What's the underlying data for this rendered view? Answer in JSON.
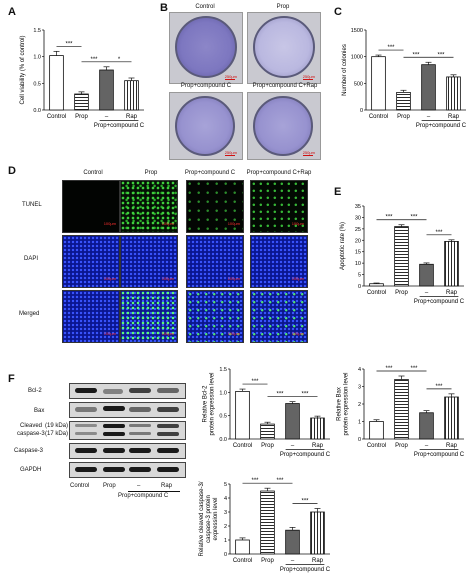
{
  "panels": {
    "A": "A",
    "B": "B",
    "C": "C",
    "D": "D",
    "E": "E",
    "F": "F"
  },
  "common": {
    "group_labels": [
      "Control",
      "Prop",
      "–",
      "Rap"
    ],
    "compound_label": "Prop+compound C",
    "colors": {
      "bar_fill": "#ffffff",
      "bar_stroke": "#111111",
      "sig": "#111111"
    }
  },
  "colony_images": {
    "labels": [
      "Control",
      "Prop",
      "Prop+compound C",
      "Prop+compound C+Rap"
    ],
    "scale": "250μm"
  },
  "tunel": {
    "columns": [
      "Control",
      "Prop",
      "Prop+compound C",
      "Prop+compound C+Rap"
    ],
    "rows": [
      "TUNEL",
      "DAPI",
      "Merged"
    ],
    "scale": "100μm"
  },
  "western": {
    "rows": [
      "Bcl-2",
      "Bax",
      "Cleaved",
      "caspase-3",
      "(19 kDa)",
      "(17 kDa)",
      "Caspase-3",
      "GAPDH"
    ],
    "lanes": [
      "Control",
      "Prop",
      "–",
      "Rap"
    ],
    "compound_label": "Prop+compound C"
  },
  "chart_data": [
    {
      "id": "A",
      "type": "bar",
      "categories": [
        "Control",
        "Prop",
        "–",
        "Rap"
      ],
      "values": [
        1.02,
        0.3,
        0.75,
        0.55
      ],
      "errors": [
        0.08,
        0.04,
        0.06,
        0.05
      ],
      "ylabel": "Cell viability (% of control)",
      "ylim": [
        0,
        1.5
      ],
      "yticks": [
        "0.0",
        "0.5",
        "1.0",
        "1.5"
      ],
      "sig": [
        "***",
        "***",
        "*"
      ]
    },
    {
      "id": "C",
      "type": "bar",
      "categories": [
        "Control",
        "Prop",
        "–",
        "Rap"
      ],
      "values": [
        1000,
        330,
        850,
        620
      ],
      "errors": [
        30,
        40,
        45,
        40
      ],
      "ylabel": "Number of colonies",
      "ylim": [
        0,
        1500
      ],
      "yticks": [
        "0",
        "500",
        "1000",
        "1500"
      ],
      "sig": [
        "***",
        "***",
        "***"
      ]
    },
    {
      "id": "E",
      "type": "bar",
      "categories": [
        "Control",
        "Prop",
        "–",
        "Rap"
      ],
      "values": [
        1,
        26,
        9.5,
        19.5
      ],
      "errors": [
        0.3,
        0.8,
        0.6,
        0.7
      ],
      "ylabel": "Apoptotic rate (%)",
      "ylim": [
        0,
        35
      ],
      "yticks": [
        "0",
        "5",
        "10",
        "15",
        "20",
        "25",
        "30",
        "35"
      ],
      "sig": [
        "***",
        "***",
        "***"
      ]
    },
    {
      "id": "F1",
      "type": "bar",
      "categories": [
        "Control",
        "Prop",
        "–",
        "Rap"
      ],
      "values": [
        1.02,
        0.32,
        0.76,
        0.45
      ],
      "errors": [
        0.05,
        0.04,
        0.04,
        0.04
      ],
      "ylabel": "Relative Bcl-2 protein expression level",
      "ylim": [
        0,
        1.5
      ],
      "yticks": [
        "0.0",
        "0.5",
        "1.0",
        "1.5"
      ],
      "sig": [
        "***",
        "***",
        "***"
      ]
    },
    {
      "id": "F2",
      "type": "bar",
      "categories": [
        "Control",
        "Prop",
        "–",
        "Rap"
      ],
      "values": [
        1.0,
        3.4,
        1.5,
        2.4
      ],
      "errors": [
        0.1,
        0.2,
        0.12,
        0.18
      ],
      "ylabel": "Relative Bax protein expression level",
      "ylim": [
        0,
        4
      ],
      "yticks": [
        "0",
        "1",
        "2",
        "3",
        "4"
      ],
      "sig": [
        "***",
        "***",
        "***"
      ]
    },
    {
      "id": "F3",
      "type": "bar",
      "categories": [
        "Control",
        "Prop",
        "–",
        "Rap"
      ],
      "values": [
        1.0,
        4.5,
        1.7,
        3.0
      ],
      "errors": [
        0.15,
        0.2,
        0.2,
        0.25
      ],
      "ylabel": "Relative cleaved caspase-3/ caspase-3 protein expression level",
      "ylim": [
        0,
        5
      ],
      "yticks": [
        "0",
        "1",
        "2",
        "3",
        "4",
        "5"
      ],
      "sig": [
        "***",
        "***",
        "***"
      ]
    }
  ]
}
